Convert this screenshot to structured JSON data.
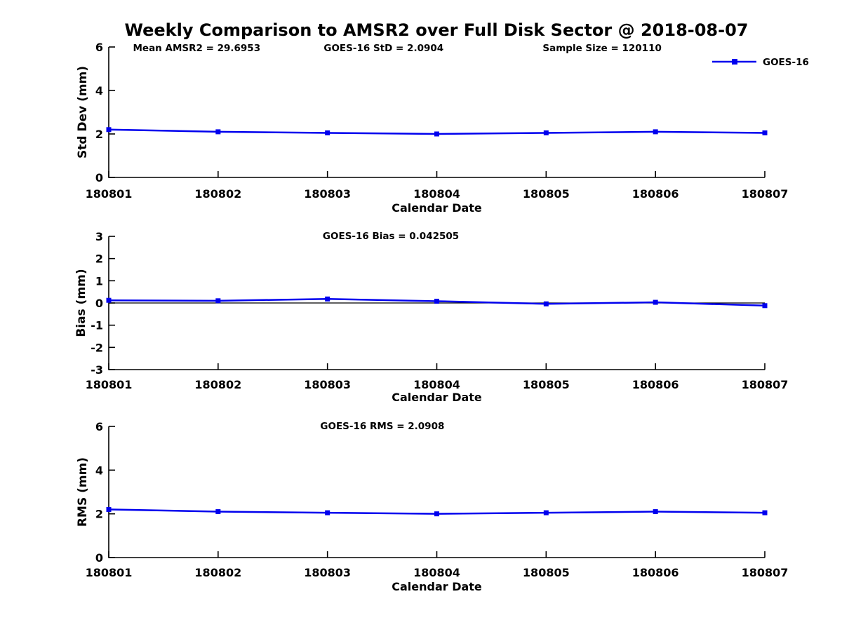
{
  "header": {
    "title": "Weekly Comparison to AMSR2 over Full Disk Sector @ 2018-08-07"
  },
  "colors": {
    "series": "#0000EE",
    "axis": "#000000",
    "text": "#000000",
    "background": "#FFFFFF"
  },
  "legend": {
    "label": "GOES-16",
    "position": "top-right"
  },
  "chart_data": [
    {
      "type": "line",
      "title": "",
      "annotations": [
        "Mean AMSR2 = 29.6953",
        "GOES-16 StD = 2.0904",
        "Sample Size = 120110"
      ],
      "categories": [
        "180801",
        "180802",
        "180803",
        "180804",
        "180805",
        "180806",
        "180807"
      ],
      "series": [
        {
          "name": "GOES-16",
          "values": [
            2.2,
            2.1,
            2.05,
            2.0,
            2.05,
            2.1,
            2.05
          ]
        }
      ],
      "xlabel": "Calendar Date",
      "ylabel": "Std Dev (mm)",
      "ylim": [
        0,
        6
      ],
      "yticks": [
        0,
        2,
        4,
        6
      ],
      "grid": false,
      "zero_line": false,
      "show_legend": true
    },
    {
      "type": "line",
      "title": "",
      "annotations": [
        "GOES-16 Bias  = 0.042505"
      ],
      "categories": [
        "180801",
        "180802",
        "180803",
        "180804",
        "180805",
        "180806",
        "180807"
      ],
      "series": [
        {
          "name": "GOES-16",
          "values": [
            0.12,
            0.1,
            0.18,
            0.08,
            -0.04,
            0.03,
            -0.12
          ]
        }
      ],
      "xlabel": "Calendar Date",
      "ylabel": "Bias (mm)",
      "ylim": [
        -3,
        3
      ],
      "yticks": [
        -3,
        -2,
        -1,
        0,
        1,
        2,
        3
      ],
      "grid": false,
      "zero_line": true,
      "show_legend": false
    },
    {
      "type": "line",
      "title": "",
      "annotations": [
        "GOES-16 RMS = 2.0908"
      ],
      "categories": [
        "180801",
        "180802",
        "180803",
        "180804",
        "180805",
        "180806",
        "180807"
      ],
      "series": [
        {
          "name": "GOES-16",
          "values": [
            2.2,
            2.1,
            2.05,
            2.0,
            2.05,
            2.1,
            2.05
          ]
        }
      ],
      "xlabel": "Calendar Date",
      "ylabel": "RMS (mm)",
      "ylim": [
        0,
        6
      ],
      "yticks": [
        0,
        2,
        4,
        6
      ],
      "grid": false,
      "zero_line": false,
      "show_legend": false
    }
  ]
}
